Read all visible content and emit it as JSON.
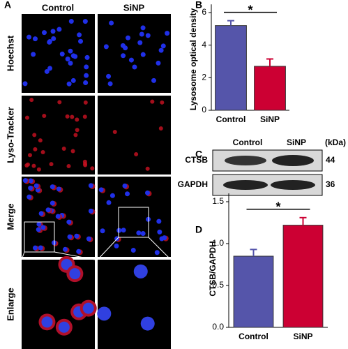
{
  "panel_labels": [
    "A",
    "B",
    "C",
    "D"
  ],
  "microscopy": {
    "columns": [
      "Control",
      "SiNP"
    ],
    "rows": [
      "Hoechst",
      "Lyso-Tracker",
      "Merge",
      "Enlarge"
    ]
  },
  "blot": {
    "columns": [
      "Control",
      "SiNP"
    ],
    "unit": "(kDa)",
    "rows": [
      {
        "label": "CTSB",
        "kda": 44
      },
      {
        "label": "GAPDH",
        "kda": 36
      }
    ]
  },
  "chart_data": [
    {
      "type": "bar",
      "ylabel": "Lysosome optical density",
      "categories": [
        "Control",
        "SiNP"
      ],
      "values": [
        5.2,
        2.7
      ],
      "errors": [
        0.3,
        0.45
      ],
      "colors": [
        "#5555aa",
        "#cc0033"
      ],
      "ylim": [
        0,
        6.5
      ],
      "yticks": [
        0,
        2,
        4,
        6
      ],
      "annotation": "*"
    },
    {
      "type": "bar",
      "ylabel": "CTSB/GAPDH",
      "categories": [
        "Control",
        "SiNP"
      ],
      "values": [
        0.85,
        1.22
      ],
      "errors": [
        0.08,
        0.09
      ],
      "colors": [
        "#5555aa",
        "#cc0033"
      ],
      "ylim": [
        0,
        1.6
      ],
      "yticks": [
        {
          "value": 0,
          "label": "0.0"
        },
        {
          "value": 0.5,
          "label": "0.5"
        },
        {
          "value": 1,
          "label": "1.0"
        },
        {
          "value": 1.5,
          "label": "1.5"
        }
      ],
      "annotation": "*"
    }
  ]
}
